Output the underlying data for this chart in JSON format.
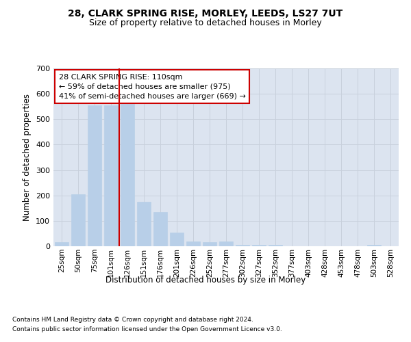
{
  "title": "28, CLARK SPRING RISE, MORLEY, LEEDS, LS27 7UT",
  "subtitle": "Size of property relative to detached houses in Morley",
  "xlabel": "Distribution of detached houses by size in Morley",
  "ylabel": "Number of detached properties",
  "bar_color": "#b8cfe8",
  "bar_edgecolor": "#b8cfe8",
  "grid_color": "#c8d0dc",
  "bg_color": "#dce4f0",
  "annotation_box_color": "#cc0000",
  "vline_color": "#cc0000",
  "bins": [
    "25sqm",
    "50sqm",
    "75sqm",
    "101sqm",
    "126sqm",
    "151sqm",
    "176sqm",
    "201sqm",
    "226sqm",
    "252sqm",
    "277sqm",
    "302sqm",
    "327sqm",
    "352sqm",
    "377sqm",
    "403sqm",
    "428sqm",
    "453sqm",
    "478sqm",
    "503sqm",
    "528sqm"
  ],
  "values": [
    15,
    205,
    555,
    555,
    560,
    175,
    135,
    55,
    20,
    15,
    20,
    5,
    5,
    5,
    0,
    0,
    0,
    0,
    0,
    5,
    0
  ],
  "ylim": [
    0,
    700
  ],
  "yticks": [
    0,
    100,
    200,
    300,
    400,
    500,
    600,
    700
  ],
  "property_bin_index": 3,
  "vline_x_offset": 0.5,
  "annotation_text": "28 CLARK SPRING RISE: 110sqm\n← 59% of detached houses are smaller (975)\n41% of semi-detached houses are larger (669) →",
  "footnote1": "Contains HM Land Registry data © Crown copyright and database right 2024.",
  "footnote2": "Contains public sector information licensed under the Open Government Licence v3.0."
}
